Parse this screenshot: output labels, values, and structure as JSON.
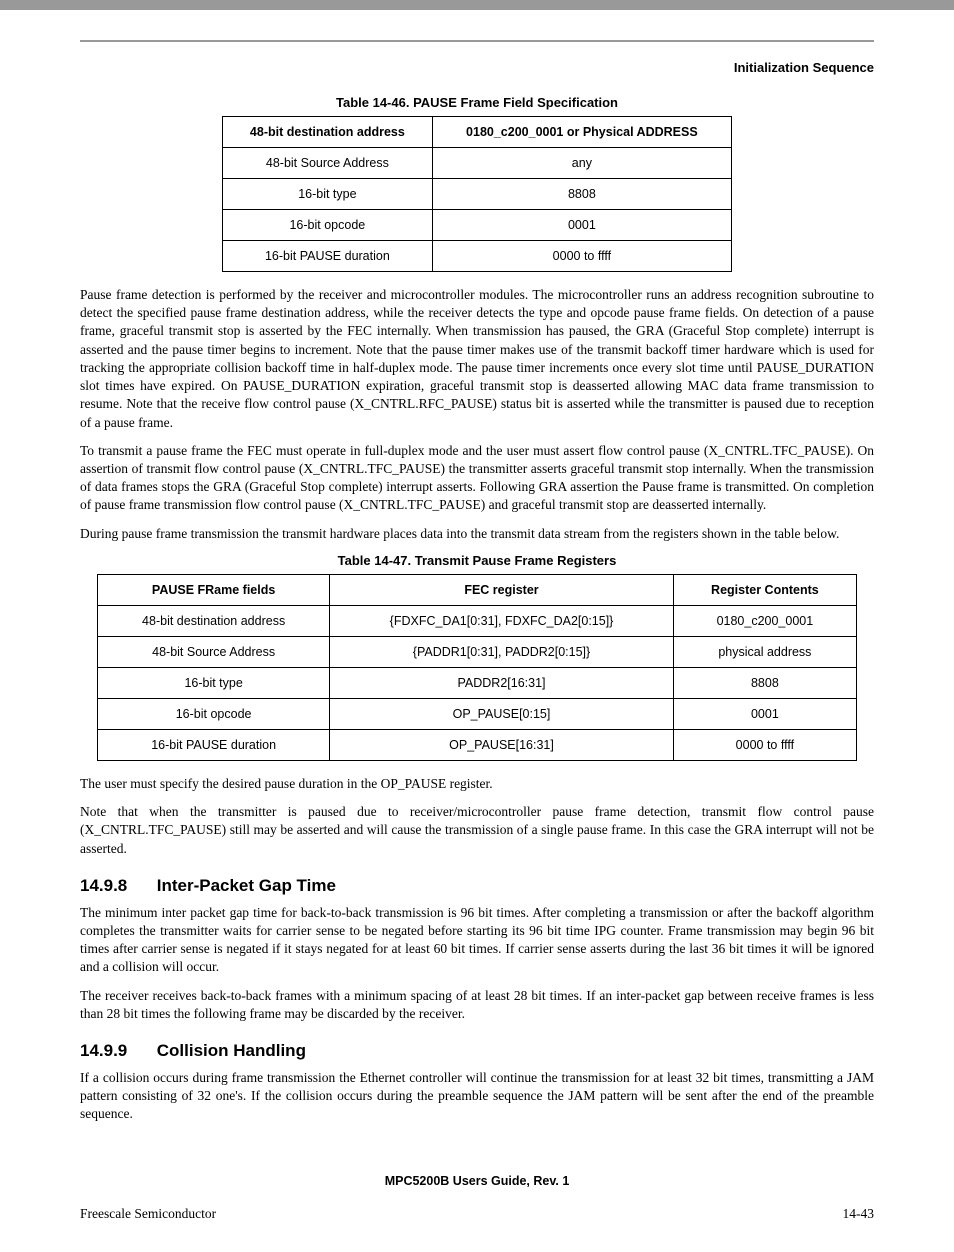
{
  "header": {
    "right": "Initialization Sequence"
  },
  "table1": {
    "caption": "Table 14-46. PAUSE Frame Field Specification",
    "header": [
      "48-bit destination address",
      "0180_c200_0001 or Physical ADDRESS"
    ],
    "rows": [
      [
        "48-bit Source Address",
        "any"
      ],
      [
        "16-bit type",
        "8808"
      ],
      [
        "16-bit opcode",
        "0001"
      ],
      [
        "16-bit PAUSE duration",
        "0000 to ffff"
      ]
    ]
  },
  "para1": "Pause frame detection is performed by the receiver and microcontroller modules. The microcontroller runs an address recognition subroutine to detect the specified pause frame destination address, while the receiver detects the type and opcode pause frame fields. On detection of a pause frame, graceful transmit stop is asserted by the FEC internally. When transmission has paused, the GRA (Graceful Stop complete) interrupt is asserted and the pause timer begins to increment. Note that the pause timer makes use of the transmit backoff timer hardware which is used for tracking the appropriate collision backoff time in half-duplex mode. The pause timer increments once every slot time until PAUSE_DURATION slot times have expired. On PAUSE_DURATION expiration, graceful transmit stop is deasserted allowing MAC data frame transmission to resume. Note that the receive flow control pause (X_CNTRL.RFC_PAUSE) status bit is asserted while the transmitter is paused due to reception of a pause frame.",
  "para2": "To transmit a pause frame the FEC must operate in full-duplex mode and the user must assert flow control pause (X_CNTRL.TFC_PAUSE). On assertion of transmit flow control pause (X_CNTRL.TFC_PAUSE) the transmitter asserts graceful transmit stop internally. When the transmission of data frames stops the GRA (Graceful Stop complete) interrupt asserts. Following GRA assertion the Pause frame is transmitted. On completion of pause frame transmission flow control pause (X_CNTRL.TFC_PAUSE) and graceful transmit stop are deasserted internally.",
  "para3": "During pause frame transmission the transmit hardware places data into the transmit data stream from the registers shown in the table below.",
  "table2": {
    "caption": "Table 14-47. Transmit Pause Frame Registers",
    "header": [
      "PAUSE FRame fields",
      "FEC register",
      "Register Contents"
    ],
    "rows": [
      [
        "48-bit destination address",
        "{FDXFC_DA1[0:31], FDXFC_DA2[0:15]}",
        "0180_c200_0001"
      ],
      [
        "48-bit Source Address",
        "{PADDR1[0:31], PADDR2[0:15]}",
        "physical address"
      ],
      [
        "16-bit type",
        "PADDR2[16:31]",
        "8808"
      ],
      [
        "16-bit opcode",
        "OP_PAUSE[0:15]",
        "0001"
      ],
      [
        "16-bit PAUSE duration",
        "OP_PAUSE[16:31]",
        "0000 to ffff"
      ]
    ]
  },
  "para4": "The user must specify the desired pause duration in the OP_PAUSE register.",
  "para5": "Note that when the transmitter is paused due to receiver/microcontroller pause frame detection, transmit flow control pause (X_CNTRL.TFC_PAUSE) still may be asserted and will cause the transmission of a single pause frame. In this case the GRA interrupt will not be asserted.",
  "section1": {
    "num": "14.9.8",
    "title": "Inter-Packet Gap Time"
  },
  "para6": "The minimum inter packet gap time for back-to-back transmission is 96 bit times. After completing a transmission or after the backoff algorithm completes the transmitter waits for carrier sense to be negated before starting its 96 bit time IPG counter. Frame transmission may begin 96 bit times after carrier sense is negated if it stays negated for at least 60 bit times. If carrier sense asserts during the last 36 bit times it will be ignored and a collision will occur.",
  "para7": "The receiver receives back-to-back frames with a minimum spacing of at least 28 bit times. If an inter-packet gap between receive frames is less than 28 bit times the following frame may be discarded by the receiver.",
  "section2": {
    "num": "14.9.9",
    "title": "Collision Handling"
  },
  "para8": "If a collision occurs during frame transmission the Ethernet controller will continue the transmission for at least 32 bit times, transmitting a JAM pattern consisting of 32 one's. If the collision occurs during the preamble sequence the JAM pattern will be sent after the end of the preamble sequence.",
  "footer": {
    "center": "MPC5200B Users Guide, Rev. 1",
    "left": "Freescale Semiconductor",
    "right": "14-43"
  }
}
